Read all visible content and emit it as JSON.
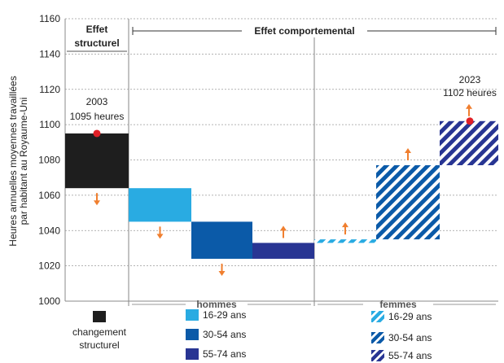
{
  "chart_data": {
    "type": "waterfall",
    "ylabel": "Heures annuelles moyennes travaillées\npar habitant au Royaume-Uni",
    "ylim": [
      1000,
      1160
    ],
    "yticks": [
      1000,
      1020,
      1040,
      1060,
      1080,
      1100,
      1120,
      1140,
      1160
    ],
    "grid": true,
    "section_headers": {
      "structural": "Effet\nstructurel",
      "behavioral": "Effet comportemental"
    },
    "group_labels": {
      "men": "hommes",
      "women": "femmes"
    },
    "start_annotation": {
      "year": "2003",
      "value_text": "1095 heures",
      "value": 1095
    },
    "end_annotation": {
      "year": "2023",
      "value_text": "1102 heures",
      "value": 1102
    },
    "bars": [
      {
        "name": "changement structurel",
        "from": 1095,
        "to": 1064,
        "color": "#1e1e1e",
        "pattern": "solid",
        "direction": "down"
      },
      {
        "name": "hommes 16-29 ans",
        "from": 1064,
        "to": 1045,
        "color": "#29abe2",
        "pattern": "solid",
        "direction": "down"
      },
      {
        "name": "hommes 30-54 ans",
        "from": 1045,
        "to": 1024,
        "color": "#0b5aa8",
        "pattern": "solid",
        "direction": "down"
      },
      {
        "name": "hommes 55-74 ans",
        "from": 1024,
        "to": 1033,
        "color": "#283593",
        "pattern": "solid",
        "direction": "up"
      },
      {
        "name": "femmes 16-29 ans",
        "from": 1033,
        "to": 1035,
        "color": "#29abe2",
        "pattern": "hatched",
        "direction": "up"
      },
      {
        "name": "femmes 30-54 ans",
        "from": 1035,
        "to": 1077,
        "color": "#0b5aa8",
        "pattern": "hatched",
        "direction": "up"
      },
      {
        "name": "femmes 55-74 ans",
        "from": 1077,
        "to": 1102,
        "color": "#283593",
        "pattern": "hatched",
        "direction": "up"
      }
    ],
    "legend": {
      "structural": "changement\nstructurel",
      "men": [
        "16-29 ans",
        "30-54 ans",
        "55-74 ans"
      ],
      "women": [
        "16-29 ans",
        "30-54 ans",
        "55-74 ans"
      ]
    },
    "colors": {
      "arrow": "#f07f2f",
      "marker": "#e01f26",
      "grid": "#9a9a9a",
      "divider": "#9a9a9a"
    }
  }
}
